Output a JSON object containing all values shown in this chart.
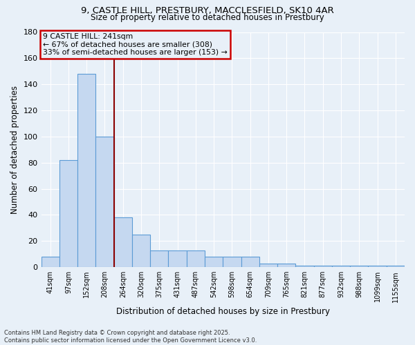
{
  "title1": "9, CASTLE HILL, PRESTBURY, MACCLESFIELD, SK10 4AR",
  "title2": "Size of property relative to detached houses in Prestbury",
  "xlabel": "Distribution of detached houses by size in Prestbury",
  "ylabel": "Number of detached properties",
  "categories": [
    "41sqm",
    "97sqm",
    "152sqm",
    "208sqm",
    "264sqm",
    "320sqm",
    "375sqm",
    "431sqm",
    "487sqm",
    "542sqm",
    "598sqm",
    "654sqm",
    "709sqm",
    "765sqm",
    "821sqm",
    "877sqm",
    "932sqm",
    "988sqm",
    "1099sqm",
    "1155sqm"
  ],
  "values": [
    8,
    82,
    148,
    100,
    38,
    25,
    13,
    13,
    13,
    8,
    8,
    8,
    3,
    3,
    1,
    1,
    1,
    1,
    1,
    1
  ],
  "bar_color": "#c5d8f0",
  "bar_edge_color": "#5b9bd5",
  "background_color": "#e8f0f8",
  "grid_color": "#ffffff",
  "vline_x": 3.5,
  "vline_color": "#8b0000",
  "annotation_title": "9 CASTLE HILL: 241sqm",
  "annotation_line1": "← 67% of detached houses are smaller (308)",
  "annotation_line2": "33% of semi-detached houses are larger (153) →",
  "box_color": "#cc0000",
  "ylim": [
    0,
    180
  ],
  "yticks": [
    0,
    20,
    40,
    60,
    80,
    100,
    120,
    140,
    160,
    180
  ],
  "footer1": "Contains HM Land Registry data © Crown copyright and database right 2025.",
  "footer2": "Contains public sector information licensed under the Open Government Licence v3.0."
}
